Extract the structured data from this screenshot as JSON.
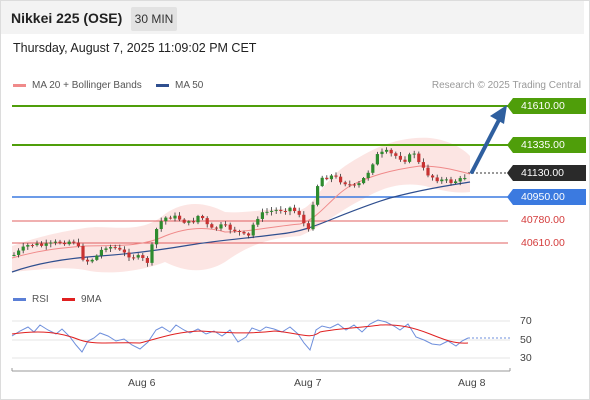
{
  "header": {
    "title": "Nikkei 225 (OSE)",
    "timeframe": "30 MIN"
  },
  "datetime": "Thursday, August 7, 2025 11:09:02 PM CET",
  "legend": [
    {
      "label": "MA 20 + Bollinger Bands",
      "color": "#f08a8a"
    },
    {
      "label": "MA 50",
      "color": "#2f4f8f"
    }
  ],
  "copyright": "Research © 2025 Trading Central",
  "levels": {
    "resistance_2": "41610.00",
    "resistance_1": "41335.00",
    "last_price": "41130.00",
    "pivot": "40950.00",
    "support_1": "40780.00",
    "support_2": "40610.00"
  },
  "rsi_panel": {
    "legend": [
      {
        "label": "RSI",
        "color": "#5b7fd6"
      },
      {
        "label": "9MA",
        "color": "#e02020"
      }
    ],
    "levels": [
      "70",
      "50",
      "30"
    ]
  },
  "x_axis": [
    "Aug 6",
    "Aug 7",
    "Aug 8"
  ],
  "colors": {
    "resistance": "#4f9e0a",
    "pivot": "#3b7ae0",
    "support": "#e06060",
    "bull": "#2e8b2e",
    "bear": "#c83232",
    "arrow": "#2f5f9f"
  }
}
